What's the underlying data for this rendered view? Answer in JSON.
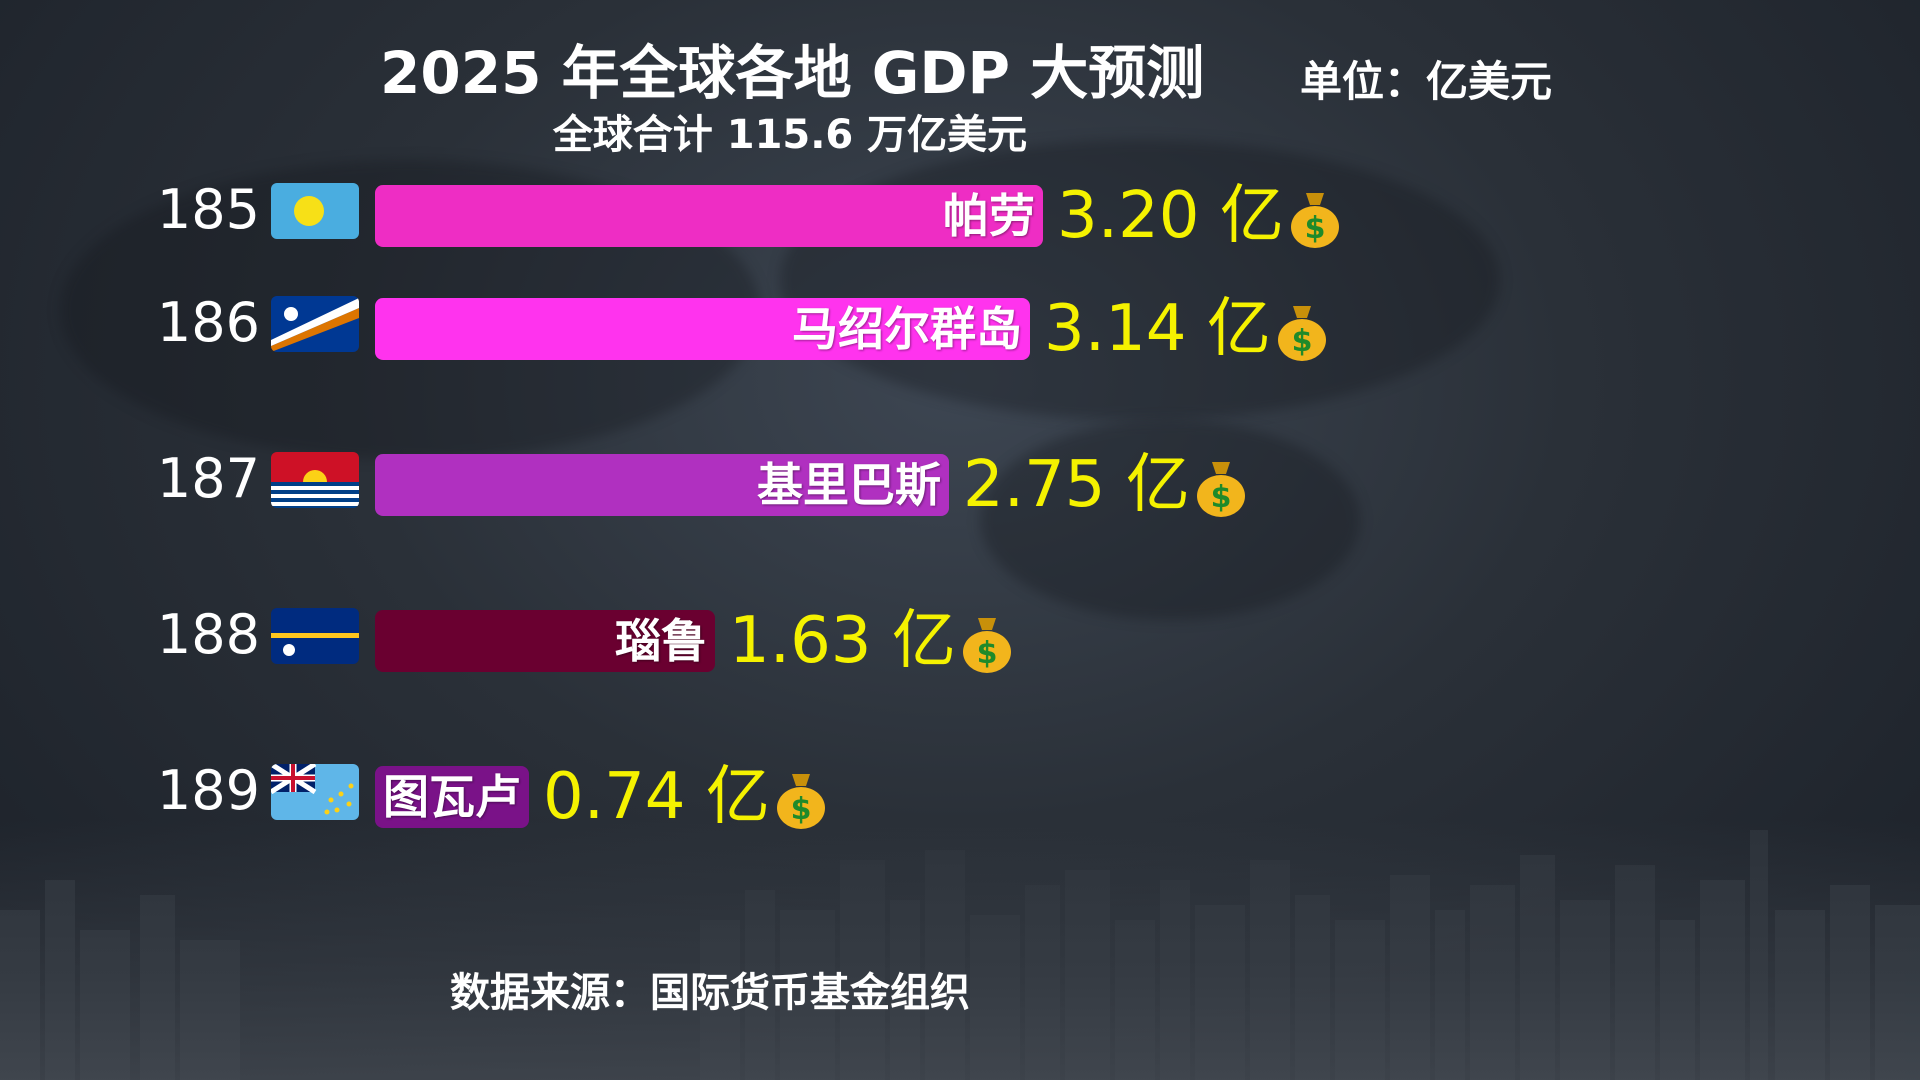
{
  "header": {
    "title": "2025 年全球各地 GDP 大预测",
    "subtitle": "全球合计 115.6 万亿美元",
    "unit": "单位：亿美元"
  },
  "footer": {
    "source": "数据来源：国际货币基金组织"
  },
  "chart_data": {
    "type": "bar",
    "orientation": "horizontal",
    "title": "2025 年全球各地 GDP 大预测",
    "subtitle": "全球合计 115.6 万亿美元",
    "unit": "单位：亿美元",
    "value_suffix": "亿",
    "categories": [
      "帕劳",
      "马绍尔群岛",
      "基里巴斯",
      "瑙鲁",
      "图瓦卢"
    ],
    "ranks": [
      "185",
      "186",
      "187",
      "188",
      "189"
    ],
    "values": [
      3.2,
      3.14,
      2.75,
      1.63,
      0.74
    ],
    "value_labels": [
      "3.20 亿",
      "3.14 亿",
      "2.75 亿",
      "1.63 亿",
      "0.74 亿"
    ],
    "colors": [
      "#ee2dc4",
      "#ff33ee",
      "#b030c0",
      "#6a0030",
      "#7a1288"
    ],
    "icons": [
      "palau-flag-icon",
      "marshall-islands-flag-icon",
      "kiribati-flag-icon",
      "nauru-flag-icon",
      "tuvalu-flag-icon"
    ]
  }
}
